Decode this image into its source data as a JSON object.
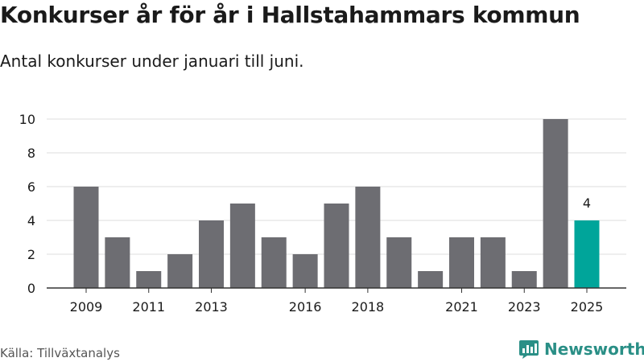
{
  "title": "Konkurser år för år i Hallstahammars kommun",
  "subtitle": "Antal konkurser under januari till juni.",
  "source": "Källa: Tillväxtanalys",
  "brand": "Newsworthy",
  "colors": {
    "bar": "#6d6d72",
    "highlight": "#00a59a",
    "grid": "#dddddd",
    "axis": "#333333",
    "text": "#1a1a1a",
    "brand": "#2a8f86"
  },
  "chart_data": {
    "type": "bar",
    "title": "",
    "xlabel": "",
    "ylabel": "",
    "x": [
      2009,
      2010,
      2011,
      2012,
      2013,
      2014,
      2015,
      2016,
      2017,
      2018,
      2019,
      2020,
      2021,
      2022,
      2023,
      2024,
      2025
    ],
    "values": [
      6,
      3,
      1,
      2,
      4,
      5,
      3,
      2,
      5,
      6,
      3,
      1,
      3,
      3,
      1,
      10,
      4
    ],
    "x_tick_labels": [
      2009,
      2011,
      2013,
      2016,
      2018,
      2021,
      2023,
      2025
    ],
    "y_ticks": [
      0,
      2,
      4,
      6,
      8,
      10
    ],
    "ylim": [
      0,
      10
    ],
    "grid": true,
    "highlight": {
      "x": 2025,
      "label": "4"
    }
  }
}
